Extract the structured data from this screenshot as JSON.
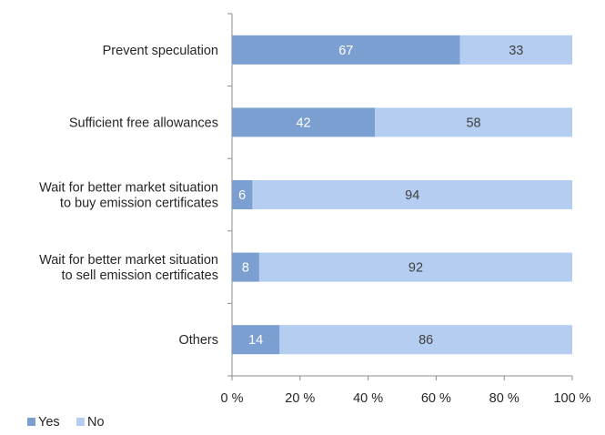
{
  "chart_data": {
    "type": "bar",
    "orientation": "horizontal",
    "stacked": true,
    "categories": [
      [
        "Prevent speculation"
      ],
      [
        "Sufficient free allowances"
      ],
      [
        "Wait for better market situation",
        "to buy emission certificates"
      ],
      [
        "Wait for better market situation",
        "to sell emission certificates"
      ],
      [
        "Others"
      ]
    ],
    "series": [
      {
        "name": "Yes",
        "values": [
          67,
          42,
          6,
          8,
          14
        ],
        "color": "#7b9fd0",
        "label_color": "#ffffff"
      },
      {
        "name": "No",
        "values": [
          33,
          58,
          94,
          92,
          86
        ],
        "color": "#b4cdf0",
        "label_color": "#404040"
      }
    ],
    "x_ticks": [
      "0 %",
      "20 %",
      "40 %",
      "60 %",
      "80 %",
      "100 %"
    ],
    "xlim": [
      0,
      100
    ],
    "grid": false,
    "legend_position": "bottom-left",
    "axis_color": "#8c8c8c"
  }
}
